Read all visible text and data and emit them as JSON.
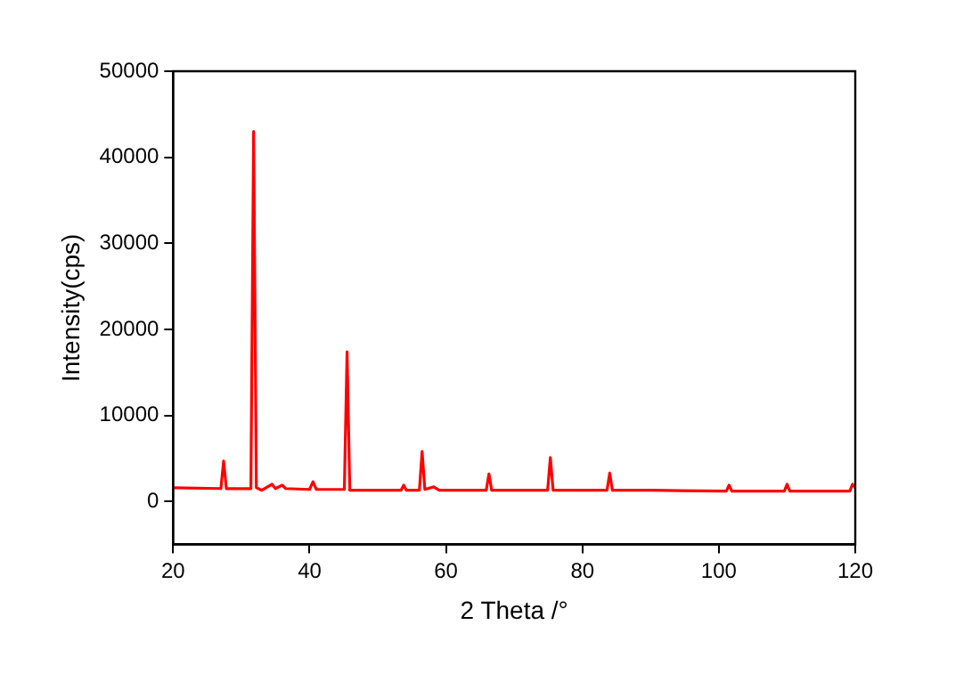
{
  "chart_data": {
    "type": "line",
    "xlabel": "2 Theta /°",
    "ylabel": "Intensity(cps)",
    "x": [
      20,
      27.0,
      27.4,
      27.8,
      31.4,
      31.8,
      32.2,
      33,
      34.5,
      35,
      36,
      36.5,
      40,
      40.5,
      41,
      45.1,
      45.5,
      45.9,
      53.4,
      53.8,
      54.2,
      56.1,
      56.5,
      56.9,
      58.2,
      59,
      65.9,
      66.3,
      66.7,
      74.9,
      75.3,
      75.7,
      83.6,
      84,
      84.4,
      90,
      101.1,
      101.5,
      101.9,
      109.6,
      110,
      110.4,
      119.2,
      119.6,
      120
    ],
    "series": [
      {
        "color": "#ff0000",
        "values": [
          1600,
          1500,
          4700,
          1500,
          1500,
          43000,
          1600,
          1300,
          2000,
          1500,
          1900,
          1500,
          1400,
          2300,
          1400,
          1400,
          17400,
          1300,
          1300,
          1900,
          1300,
          1300,
          5800,
          1400,
          1700,
          1300,
          1300,
          3200,
          1300,
          1300,
          5100,
          1300,
          1300,
          3300,
          1300,
          1300,
          1200,
          1900,
          1200,
          1200,
          2000,
          1200,
          1200,
          2000,
          1600
        ]
      }
    ],
    "xlim": [
      20,
      120
    ],
    "xticks": [
      20,
      40,
      60,
      80,
      100,
      120
    ],
    "ylim": [
      -5000,
      50000
    ],
    "yticks": [
      0,
      10000,
      20000,
      30000,
      40000,
      50000
    ],
    "grid": false,
    "legend": false,
    "marker": "none",
    "line_style": "solid"
  }
}
